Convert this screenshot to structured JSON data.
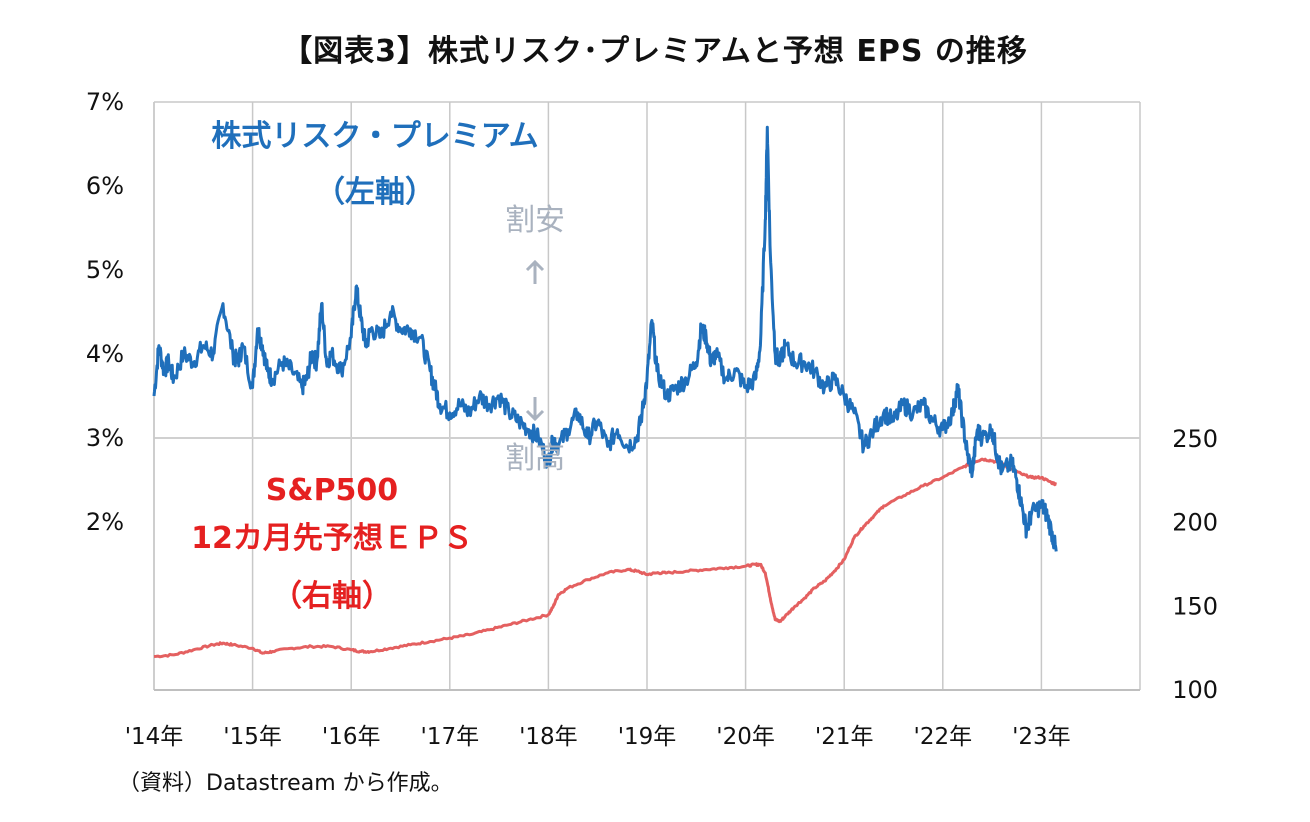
{
  "title": "【図表3】株式リスク･プレミアムと予想 EPS の推移",
  "source": "（資料）Datastream から作成。",
  "annotations": {
    "erp_label_line1": "株式リスク・プレミアム",
    "erp_label_line2": "（左軸）",
    "cheap": "割安",
    "expensive": "割高",
    "eps_label_line1": "S&P500",
    "eps_label_line2": "12カ月先予想ＥＰＳ",
    "eps_label_line3": "（右軸）"
  },
  "chart_data": {
    "type": "line",
    "title": "【図表3】株式リスク･プレミアムと予想 EPS の推移",
    "x_tick_labels": [
      "'14年",
      "'15年",
      "'16年",
      "'17年",
      "'18年",
      "'19年",
      "'20年",
      "'21年",
      "'22年",
      "'23年"
    ],
    "x_range": [
      2014.0,
      2024.0
    ],
    "left_axis": {
      "tick_labels": [
        "2%",
        "3%",
        "4%",
        "5%",
        "6%",
        "7%"
      ],
      "ylim": [
        0,
        7
      ],
      "reference_line": 3
    },
    "right_axis": {
      "tick_labels": [
        "100",
        "150",
        "200",
        "250"
      ],
      "ylim": [
        100,
        250
      ]
    },
    "grid": "vertical lines at each year",
    "colors": {
      "erp": "#1f6fbb",
      "eps": "#e46060",
      "grid": "#c8c8c8",
      "annotation_gray": "#a9b2bf",
      "eps_label": "#e52020"
    },
    "series": [
      {
        "name": "株式リスク・プレミアム",
        "axis": "left",
        "x": [
          2014.0,
          2014.05,
          2014.1,
          2014.15,
          2014.2,
          2014.3,
          2014.4,
          2014.5,
          2014.6,
          2014.7,
          2014.8,
          2014.85,
          2014.9,
          2015.0,
          2015.05,
          2015.1,
          2015.15,
          2015.2,
          2015.3,
          2015.4,
          2015.5,
          2015.55,
          2015.6,
          2015.65,
          2015.7,
          2015.75,
          2015.8,
          2015.9,
          2016.0,
          2016.05,
          2016.1,
          2016.15,
          2016.2,
          2016.3,
          2016.4,
          2016.5,
          2016.6,
          2016.7,
          2016.8,
          2016.85,
          2016.9,
          2017.0,
          2017.1,
          2017.2,
          2017.3,
          2017.4,
          2017.5,
          2017.6,
          2017.7,
          2017.8,
          2017.9,
          2018.0,
          2018.05,
          2018.1,
          2018.2,
          2018.3,
          2018.4,
          2018.5,
          2018.6,
          2018.7,
          2018.8,
          2018.9,
          2018.95,
          2019.0,
          2019.05,
          2019.1,
          2019.2,
          2019.3,
          2019.4,
          2019.5,
          2019.55,
          2019.6,
          2019.65,
          2019.7,
          2019.8,
          2019.9,
          2020.0,
          2020.1,
          2020.15,
          2020.2,
          2020.22,
          2020.25,
          2020.3,
          2020.35,
          2020.4,
          2020.5,
          2020.6,
          2020.7,
          2020.8,
          2020.9,
          2021.0,
          2021.1,
          2021.2,
          2021.3,
          2021.4,
          2021.5,
          2021.6,
          2021.7,
          2021.8,
          2021.9,
          2022.0,
          2022.1,
          2022.15,
          2022.2,
          2022.25,
          2022.3,
          2022.35,
          2022.4,
          2022.5,
          2022.55,
          2022.6,
          2022.7,
          2022.75,
          2022.8,
          2022.85,
          2022.9,
          2023.0,
          2023.05,
          2023.1,
          2023.15
        ],
        "values": [
          3.5,
          4.1,
          3.8,
          3.9,
          3.7,
          4.0,
          3.9,
          4.1,
          4.0,
          4.6,
          4.0,
          3.9,
          4.1,
          3.6,
          4.3,
          4.1,
          3.8,
          3.7,
          3.9,
          3.8,
          3.6,
          3.7,
          4.0,
          3.9,
          4.6,
          3.9,
          4.0,
          3.8,
          4.2,
          4.8,
          4.4,
          4.1,
          4.3,
          4.2,
          4.5,
          4.3,
          4.3,
          4.2,
          3.8,
          3.6,
          3.4,
          3.3,
          3.4,
          3.3,
          3.5,
          3.4,
          3.5,
          3.3,
          3.2,
          3.1,
          3.0,
          2.7,
          3.0,
          2.9,
          3.1,
          3.3,
          3.0,
          3.2,
          2.9,
          3.1,
          2.9,
          3.0,
          3.3,
          3.7,
          4.4,
          3.8,
          3.5,
          3.6,
          3.7,
          3.9,
          4.3,
          4.2,
          3.9,
          4.0,
          3.7,
          3.8,
          3.6,
          3.7,
          4.1,
          5.6,
          6.7,
          5.2,
          4.0,
          3.9,
          4.1,
          3.9,
          3.9,
          3.8,
          3.6,
          3.7,
          3.5,
          3.3,
          2.9,
          3.1,
          3.3,
          3.2,
          3.4,
          3.3,
          3.4,
          3.2,
          3.1,
          3.3,
          3.6,
          3.2,
          2.8,
          2.6,
          3.1,
          3.0,
          3.1,
          2.8,
          2.6,
          2.7,
          2.5,
          2.2,
          1.9,
          2.1,
          2.2,
          2.1,
          1.9,
          1.65
        ]
      },
      {
        "name": "S&P500 12カ月先予想ＥＰＳ",
        "axis": "right",
        "x": [
          2014.0,
          2014.2,
          2014.4,
          2014.6,
          2014.7,
          2014.8,
          2015.0,
          2015.1,
          2015.2,
          2015.4,
          2015.6,
          2015.8,
          2016.0,
          2016.1,
          2016.2,
          2016.4,
          2016.6,
          2016.8,
          2017.0,
          2017.2,
          2017.4,
          2017.6,
          2017.8,
          2018.0,
          2018.05,
          2018.1,
          2018.2,
          2018.4,
          2018.6,
          2018.8,
          2018.9,
          2019.0,
          2019.1,
          2019.2,
          2019.4,
          2019.6,
          2019.8,
          2020.0,
          2020.1,
          2020.15,
          2020.2,
          2020.25,
          2020.3,
          2020.35,
          2020.4,
          2020.5,
          2020.6,
          2020.7,
          2020.8,
          2020.9,
          2021.0,
          2021.1,
          2021.2,
          2021.3,
          2021.4,
          2021.6,
          2021.8,
          2022.0,
          2022.2,
          2022.3,
          2022.4,
          2022.5,
          2022.6,
          2022.7,
          2022.8,
          2022.9,
          2023.0,
          2023.1,
          2023.15
        ],
        "values": [
          120,
          121,
          124,
          127,
          128,
          127,
          125,
          122,
          123,
          125,
          126,
          126,
          124,
          123,
          123,
          125,
          127,
          129,
          131,
          133,
          136,
          139,
          142,
          145,
          150,
          157,
          161,
          166,
          170,
          172,
          171,
          169,
          170,
          170,
          171,
          172,
          173,
          174,
          175,
          175,
          170,
          155,
          142,
          141,
          144,
          150,
          155,
          161,
          165,
          171,
          178,
          191,
          198,
          204,
          210,
          216,
          222,
          227,
          233,
          236,
          238,
          237,
          235,
          232,
          229,
          227,
          227,
          224,
          223
        ]
      }
    ]
  }
}
